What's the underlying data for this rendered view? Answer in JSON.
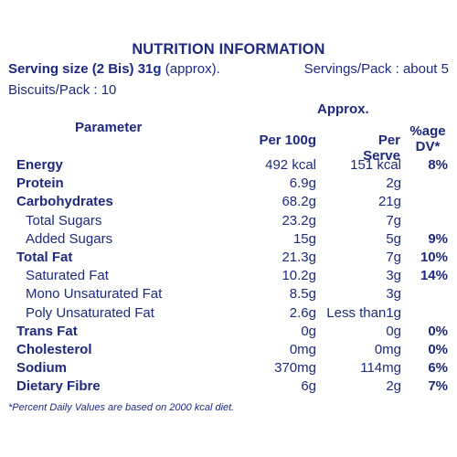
{
  "title": "NUTRITION INFORMATION",
  "serving": {
    "size_label": "Serving size (2 Bis) 31g",
    "size_note": "(approx).",
    "servings_per_pack": "Servings/Pack : about 5",
    "biscuits_per_pack": "Biscuits/Pack : 10"
  },
  "headers": {
    "parameter": "Parameter",
    "approx": "Approx.",
    "per_100g": "Per 100g",
    "per_serve": "Per Serve",
    "dv_line1": "%age",
    "dv_line2": "DV*"
  },
  "rows": [
    {
      "name": "Energy",
      "per100": "492 kcal",
      "serve": "151 kcal",
      "dv": "8%"
    },
    {
      "name": "Protein",
      "per100": "6.9g",
      "serve": "2g",
      "dv": ""
    },
    {
      "name": "Carbohydrates",
      "per100": "68.2g",
      "serve": "21g",
      "dv": ""
    },
    {
      "name": "Total Sugars",
      "per100": "23.2g",
      "serve": "7g",
      "dv": ""
    },
    {
      "name": "Added Sugars",
      "per100": "15g",
      "serve": "5g",
      "dv": "9%"
    },
    {
      "name": "Total Fat",
      "per100": "21.3g",
      "serve": "7g",
      "dv": "10%"
    },
    {
      "name": "Saturated Fat",
      "per100": "10.2g",
      "serve": "3g",
      "dv": "14%"
    },
    {
      "name": "Mono Unsaturated Fat",
      "per100": "8.5g",
      "serve": "3g",
      "dv": ""
    },
    {
      "name": "Poly Unsaturated Fat",
      "per100": "2.6g",
      "serve": "Less than1g",
      "dv": ""
    },
    {
      "name": "Trans Fat",
      "per100": "0g",
      "serve": "0g",
      "dv": "0%"
    },
    {
      "name": "Cholesterol",
      "per100": "0mg",
      "serve": "0mg",
      "dv": "0%"
    },
    {
      "name": "Sodium",
      "per100": "370mg",
      "serve": "114mg",
      "dv": "6%"
    },
    {
      "name": "Dietary Fibre",
      "per100": "6g",
      "serve": "2g",
      "dv": "7%"
    }
  ],
  "footnote": "*Percent Daily Values are based on 2000 kcal diet.",
  "colors": {
    "text": "#1d2a80",
    "background": "#ffffff"
  }
}
